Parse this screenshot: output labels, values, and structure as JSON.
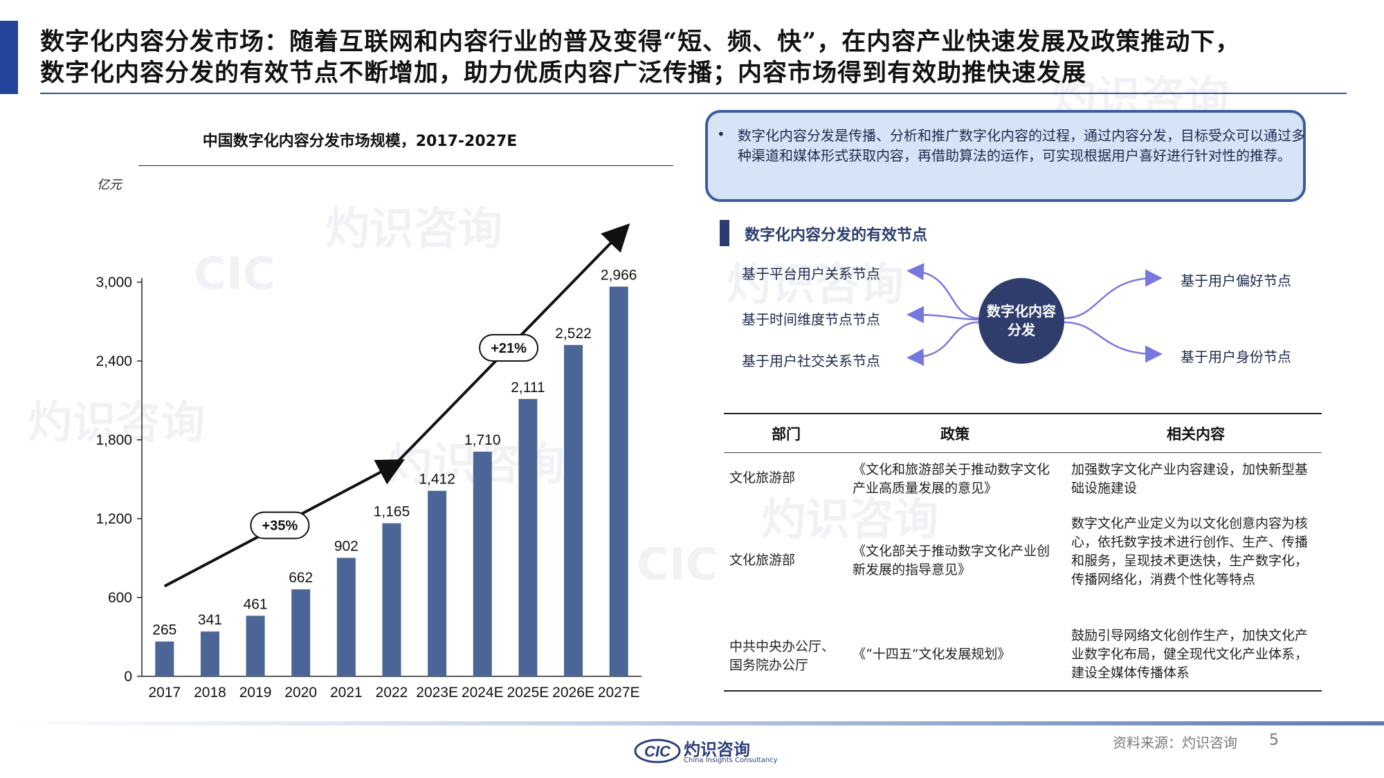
{
  "header": {
    "title_line1": "数字化内容分发市场：随着互联网和内容行业的普及变得“短、频、快”，在内容产业快速发展及政策推动下，",
    "title_line2": "数字化内容分发的有效节点不断增加，助力优质内容广泛传播；内容市场得到有效助推快速发展"
  },
  "chart_data": {
    "type": "bar",
    "title": "中国数字化内容分发市场规模，2017-2027E",
    "ylabel": "亿元",
    "categories": [
      "2017",
      "2018",
      "2019",
      "2020",
      "2021",
      "2022",
      "2023E",
      "2024E",
      "2025E",
      "2026E",
      "2027E"
    ],
    "values": [
      265,
      341,
      461,
      662,
      902,
      1165,
      1412,
      1710,
      2111,
      2522,
      2966
    ],
    "data_labels": [
      "265",
      "341",
      "461",
      "662",
      "902",
      "1,165",
      "1,412",
      "1,710",
      "2,111",
      "2,522",
      "2,966"
    ],
    "ylim": [
      0,
      3000
    ],
    "yticks": [
      0,
      600,
      1200,
      1800,
      2400,
      3000
    ],
    "ytick_labels": [
      "0",
      "600",
      "1,200",
      "1,800",
      "2,400",
      "3,000"
    ],
    "grid": false,
    "bar_color": "#4a6596",
    "annotations": [
      {
        "label": "+35%",
        "period": "2017-2022"
      },
      {
        "label": "+21%",
        "period": "2022-2027E"
      }
    ]
  },
  "callout": {
    "bullet": "•",
    "text": "数字化内容分发是传播、分析和推广数字化内容的过程，通过内容分发，目标受众可以通过多种渠道和媒体形式获取内容，再借助算法的运作，可实现根据用户喜好进行针对性的推荐。"
  },
  "nodes": {
    "title": "数字化内容分发的有效节点",
    "center": "数字化内容分发",
    "left": [
      "基于平台用户关系节点",
      "基于时间维度节点节点",
      "基于用户社交关系节点"
    ],
    "right": [
      "基于用户偏好节点",
      "基于用户身份节点"
    ]
  },
  "policy_table": {
    "headers": [
      "部门",
      "政策",
      "相关内容"
    ],
    "rows": [
      [
        "文化旅游部",
        "《文化和旅游部关于推动数字文化产业高质量发展的意见》",
        "加强数字文化产业内容建设，加快新型基础设施建设"
      ],
      [
        "文化旅游部",
        "《文化部关于推动数字文化产业创新发展的指导意见》",
        "数字文化产业定义为以文化创意内容为核心，依托数字技术进行创作、生产、传播和服务，呈现技术更迭快，生产数字化，传播网络化，消费个性化等特点"
      ],
      [
        "中共中央办公厅、国务院办公厅",
        "《“十四五”文化发展规划》",
        "鼓励引导网络文化创作生产，加快文化产业数字化布局，健全现代文化产业体系，建设全媒体传播体系"
      ]
    ]
  },
  "footer": {
    "source": "资料来源：灼识咨询",
    "page": "5",
    "logo_mark": "CIC",
    "logo_cn": "灼识咨询",
    "logo_en": "China Insights Consultancy"
  },
  "watermark": {
    "mark": "CIC",
    "cn": "灼识咨询",
    "en": "China Insights Consultancy"
  },
  "colors": {
    "accent": "#22449a",
    "bar": "#4a6596",
    "circle": "#2e3d6b",
    "callout_bg": "#d6e4f7",
    "arrow": "#7777e0"
  }
}
